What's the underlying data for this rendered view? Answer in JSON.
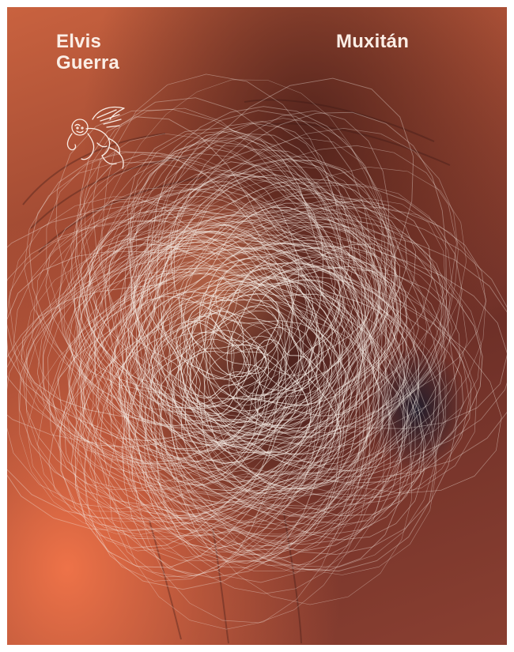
{
  "cover": {
    "author": "Elvis\nGuerra",
    "title": "Muxitán",
    "logo_icon": "winged-monkey-logo-icon",
    "colors": {
      "orange": "#d9673f",
      "dark_brown": "#4a1f1c",
      "text": "#fbeee6",
      "scribble": "#f4ebe4"
    }
  }
}
